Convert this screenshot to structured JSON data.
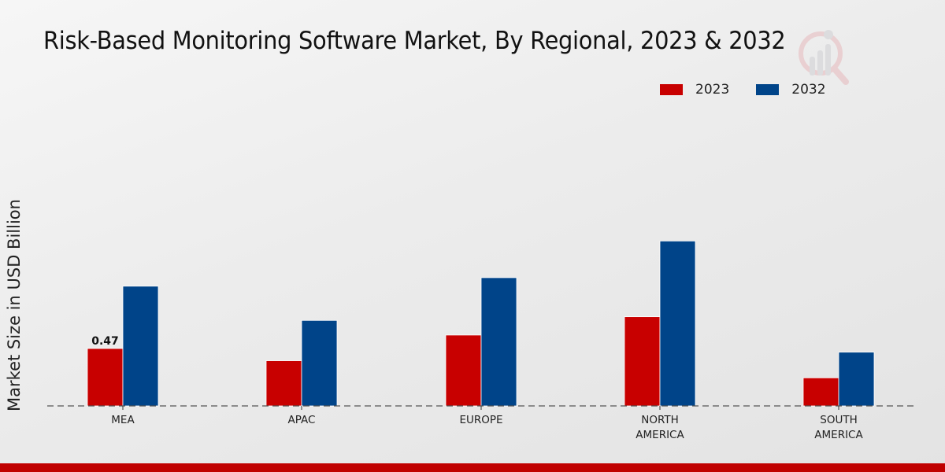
{
  "chart_data": {
    "type": "bar",
    "title": "Risk-Based Monitoring Software Market, By Regional, 2023 & 2032",
    "xlabel": "",
    "ylabel": "Market Size in USD Billion",
    "categories": [
      "MEA",
      "APAC",
      "EUROPE",
      "NORTH\nAMERICA",
      "SOUTH\nAMERICA"
    ],
    "series": [
      {
        "name": "2023",
        "color": "#c80000",
        "values": [
          0.47,
          0.37,
          0.58,
          0.73,
          0.23
        ]
      },
      {
        "name": "2032",
        "color": "#004489",
        "values": [
          0.98,
          0.7,
          1.05,
          1.35,
          0.44
        ]
      }
    ],
    "data_labels": [
      {
        "series": 0,
        "index": 0,
        "text": "0.47"
      }
    ],
    "ylim": [
      0,
      1.35
    ],
    "grid": false,
    "legend_position": "top-right",
    "baseline_style": "dashed"
  },
  "footer": {
    "accent_color": "#c00000"
  }
}
